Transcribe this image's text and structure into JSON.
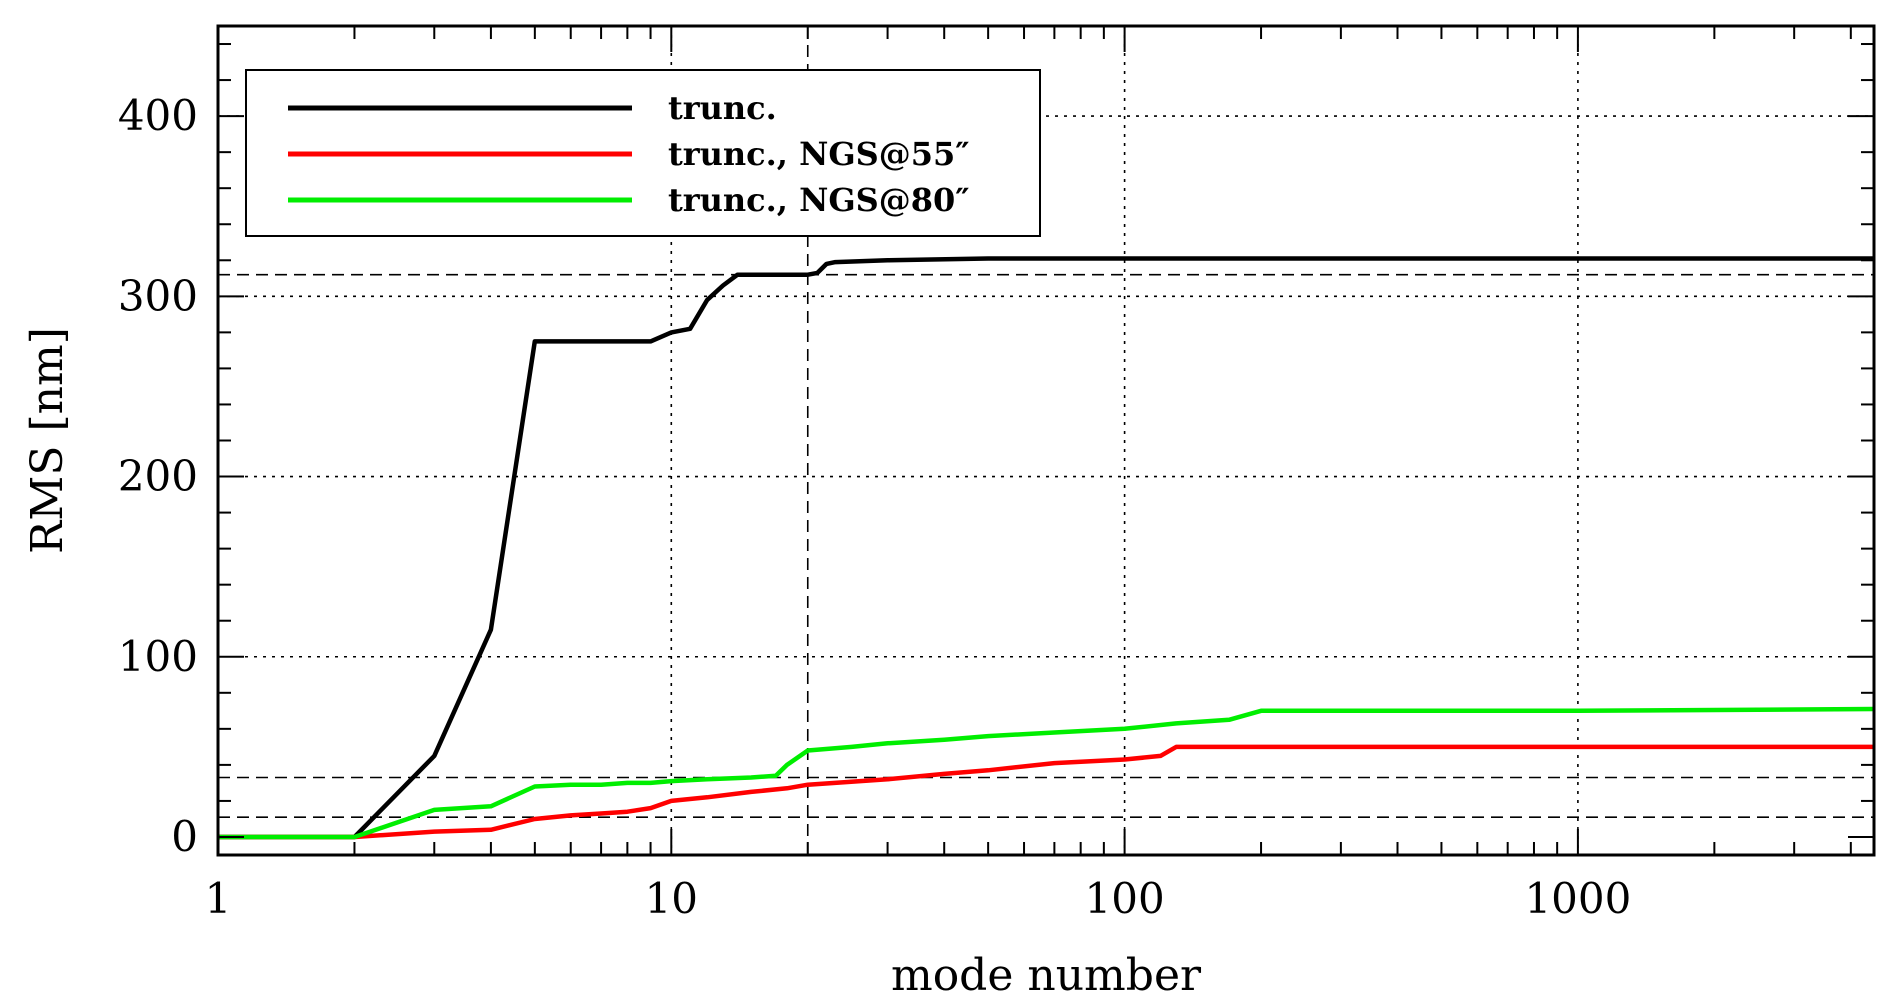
{
  "chart_data": {
    "type": "line",
    "xlabel": "mode number",
    "ylabel": "RMS [nm]",
    "xscale": "log",
    "xlim": [
      1,
      4500
    ],
    "ylim": [
      -10,
      450
    ],
    "xticks": [
      1,
      10,
      100,
      1000
    ],
    "xtick_labels": [
      "1",
      "10",
      "100",
      "1000"
    ],
    "yticks": [
      0,
      100,
      200,
      300,
      400
    ],
    "ytick_labels": [
      "0",
      "100",
      "200",
      "300",
      "400"
    ],
    "grid": true,
    "legend_position": "top-left",
    "reference_lines": {
      "vertical": [
        20
      ],
      "horizontal": [
        11,
        33,
        312
      ]
    },
    "series": [
      {
        "name": "trunc.",
        "color": "#000000",
        "x": [
          1,
          2,
          3,
          4,
          5,
          6,
          7,
          8,
          9,
          10,
          11,
          12,
          13,
          14,
          15,
          20,
          21,
          22,
          23,
          30,
          50,
          100,
          1000,
          4500
        ],
        "y": [
          0,
          0,
          45,
          115,
          275,
          275,
          275,
          275,
          275,
          280,
          282,
          298,
          306,
          312,
          312,
          312,
          313,
          318,
          319,
          320,
          321,
          321,
          321,
          321
        ]
      },
      {
        "name": "trunc., NGS@55″",
        "color": "#ff0000",
        "x": [
          1,
          2,
          3,
          4,
          5,
          6,
          7,
          8,
          9,
          10,
          12,
          15,
          18,
          20,
          30,
          40,
          50,
          70,
          100,
          120,
          130,
          170,
          200,
          1000,
          4500
        ],
        "y": [
          0,
          0,
          3,
          4,
          10,
          12,
          13,
          14,
          16,
          20,
          22,
          25,
          27,
          29,
          32,
          35,
          37,
          41,
          43,
          45,
          50,
          50,
          50,
          50,
          50
        ]
      },
      {
        "name": "trunc., NGS@80″",
        "color": "#00ee00",
        "x": [
          1,
          2,
          3,
          4,
          5,
          6,
          7,
          8,
          9,
          10,
          12,
          15,
          17,
          18,
          20,
          25,
          30,
          40,
          50,
          70,
          100,
          130,
          170,
          200,
          1000,
          4500
        ],
        "y": [
          0,
          0,
          15,
          17,
          28,
          29,
          29,
          30,
          30,
          31,
          32,
          33,
          34,
          40,
          48,
          50,
          52,
          54,
          56,
          58,
          60,
          63,
          65,
          70,
          70,
          71
        ]
      }
    ]
  }
}
